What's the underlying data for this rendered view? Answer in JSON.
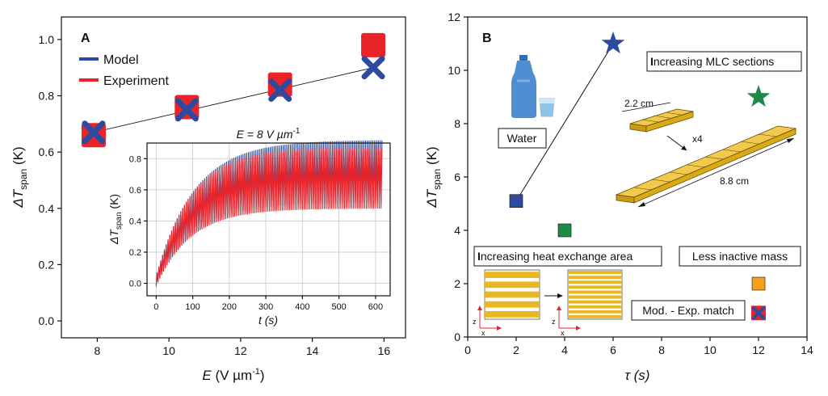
{
  "chart_data": [
    {
      "type": "scatter",
      "panel_label": "A",
      "xlabel_var": "E",
      "xlabel_unit": " (V µm",
      "xlabel_exp": "-1",
      "ylabel_var": "ΔT",
      "ylabel_sub": "span",
      "ylabel_unit": " (K)",
      "xlim": [
        7,
        16.6
      ],
      "ylim": [
        -0.06,
        1.08
      ],
      "xticks": [
        "8",
        "10",
        "12",
        "14",
        "16"
      ],
      "yticks": [
        "0.0",
        "0.2",
        "0.4",
        "0.6",
        "0.8",
        "1.0"
      ],
      "legend": [
        "Model",
        "Experiment"
      ],
      "series": [
        {
          "name": "Experiment",
          "x": [
            7.9,
            10.5,
            13.1,
            15.7
          ],
          "y": [
            0.66,
            0.76,
            0.84,
            0.98
          ]
        },
        {
          "name": "Model",
          "x": [
            7.9,
            10.5,
            13.1,
            15.7
          ],
          "y": [
            0.67,
            0.75,
            0.82,
            0.9
          ]
        }
      ],
      "fit_line": {
        "x": [
          7.9,
          15.7
        ],
        "y": [
          0.67,
          0.9
        ]
      },
      "inset": {
        "title": "E = 8 V µm",
        "title_exp": "-1",
        "xlabel": "t (s)",
        "ylabel_var": "ΔT",
        "ylabel_sub": "span",
        "ylabel_unit": " (K)",
        "xlim": [
          -25,
          640
        ],
        "ylim": [
          -0.08,
          0.9
        ],
        "xticks": [
          "0",
          "100",
          "200",
          "300",
          "400",
          "500",
          "600"
        ],
        "yticks": [
          "0.0",
          "0.2",
          "0.4",
          "0.6",
          "0.8"
        ],
        "series": [
          {
            "name": "Model",
            "tmax": 618,
            "period": 5,
            "upper_start": 0.05,
            "upper_end": 0.92,
            "lower_start": -0.01,
            "lower_end": 0.52,
            "rate": 105
          },
          {
            "name": "Experiment",
            "tmax": 618,
            "period": 5,
            "upper_start": 0.04,
            "upper_end": 0.87,
            "lower_start": -0.02,
            "lower_end": 0.48,
            "rate": 95
          }
        ]
      }
    },
    {
      "type": "scatter",
      "panel_label": "B",
      "xlabel": "τ (s)",
      "ylabel_var": "ΔT",
      "ylabel_sub": "span",
      "ylabel_unit": " (K)",
      "xlim": [
        0,
        14
      ],
      "ylim": [
        0,
        12
      ],
      "xticks": [
        "0",
        "2",
        "4",
        "6",
        "8",
        "10",
        "12",
        "14"
      ],
      "yticks": [
        "0",
        "2",
        "4",
        "6",
        "8",
        "10",
        "12"
      ],
      "points": [
        {
          "name": "water-start",
          "x": 2.0,
          "y": 5.1,
          "marker": "square",
          "color": "#2e4a9e"
        },
        {
          "name": "water-end",
          "x": 6.0,
          "y": 11.0,
          "marker": "star",
          "color": "#2e4a9e"
        },
        {
          "name": "heat-exchange",
          "x": 4.0,
          "y": 4.0,
          "marker": "square",
          "color": "#1d8a4a"
        },
        {
          "name": "mlc-sections",
          "x": 12.0,
          "y": 9.0,
          "marker": "star",
          "color": "#1d8a4a"
        },
        {
          "name": "less-inactive",
          "x": 12.0,
          "y": 2.0,
          "marker": "square",
          "color": "#f4a019"
        },
        {
          "name": "match",
          "x": 12.0,
          "y": 0.9,
          "marker": "square-x",
          "color": "#e8232a"
        }
      ],
      "annotations": {
        "water": "Water",
        "mlc_prefix": "I",
        "mlc": "ncreasing MLC sections",
        "heat_prefix": "I",
        "heat": "ncreasing heat exchange area",
        "inactive": "Less inactive mass",
        "match": "Mod. - Exp. match",
        "dim_small": "2.2 cm",
        "dim_large": "8.8 cm",
        "multiplier": "x4",
        "axis_z": "z",
        "axis_x": "x"
      }
    }
  ],
  "colors": {
    "model": "#2e4a9e",
    "experiment": "#e8232a",
    "star_green": "#1d8a4a",
    "orange": "#f4a019",
    "gold": "#e9b722",
    "water_blue": "#4f8ed0"
  }
}
